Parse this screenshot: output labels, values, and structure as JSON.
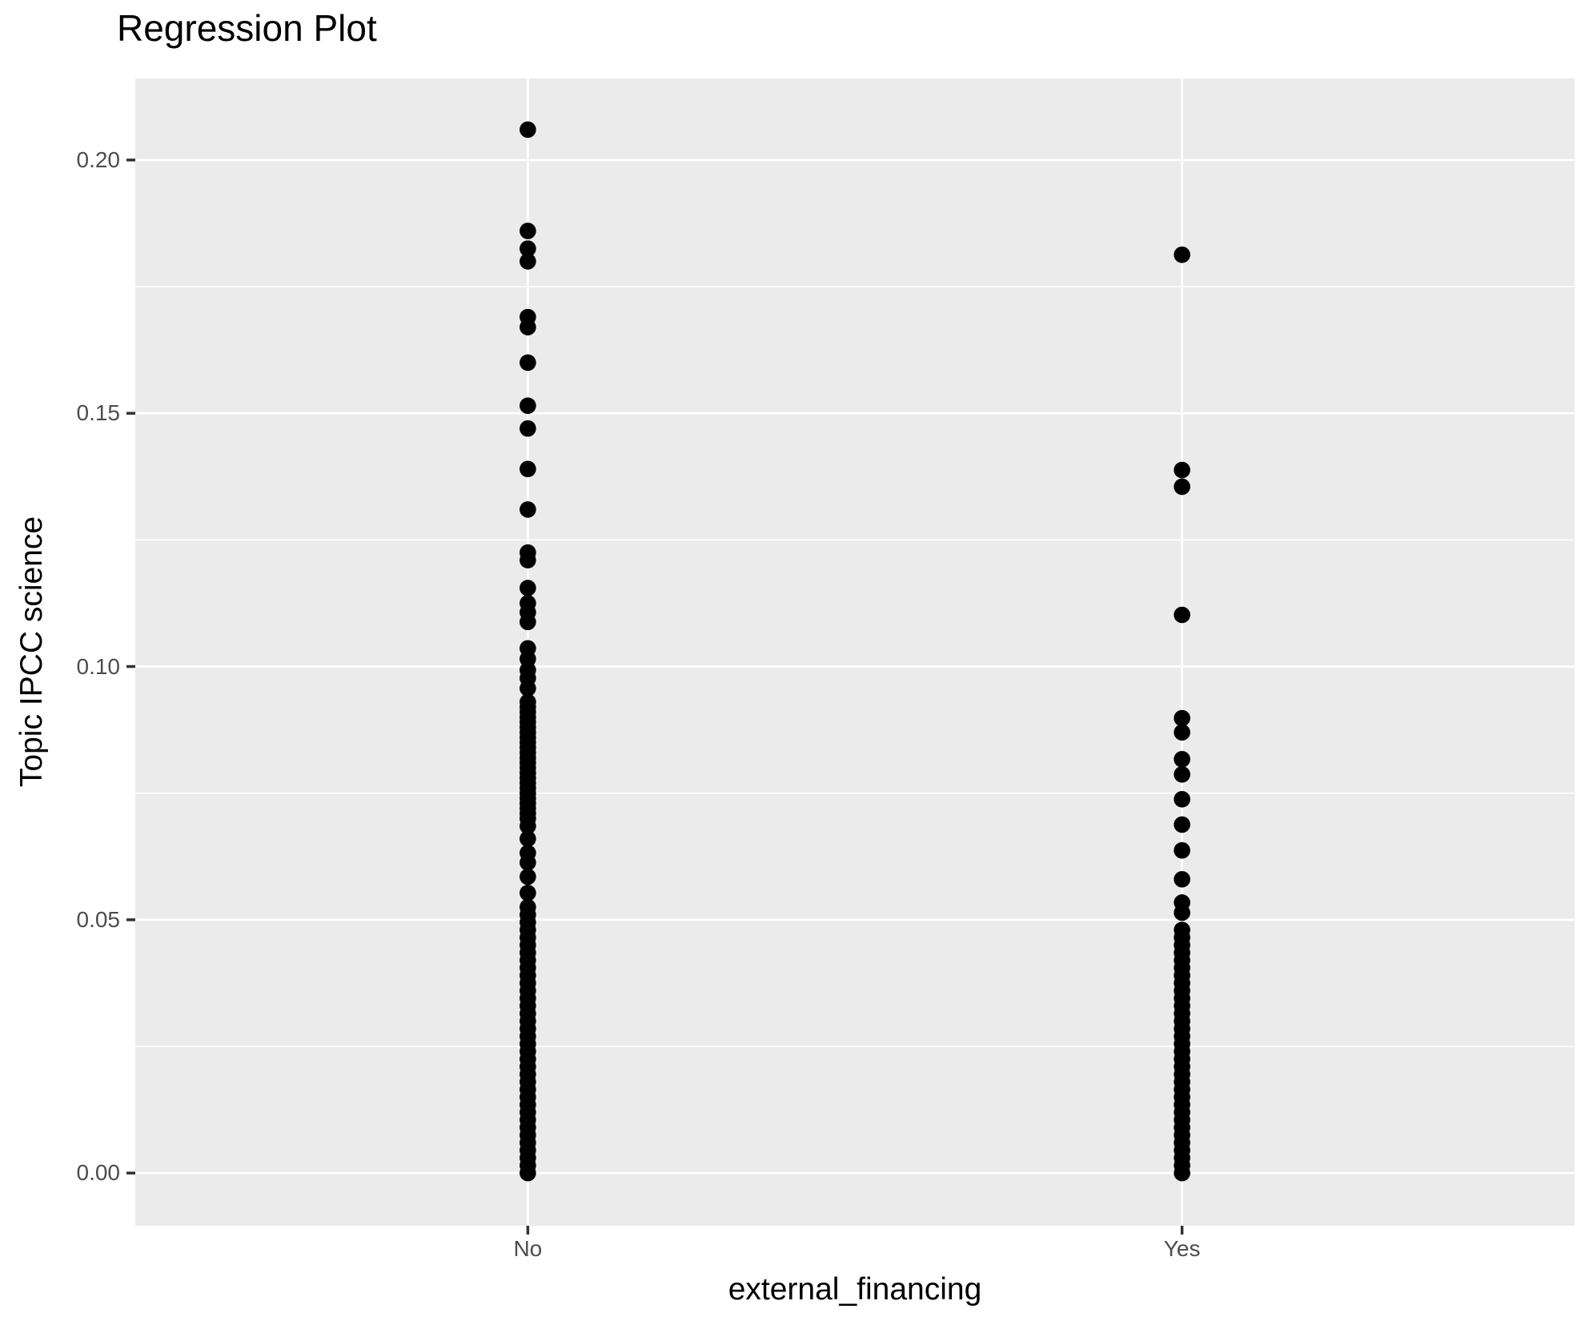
{
  "title": "Regression Plot",
  "axes": {
    "x": {
      "label": "external_financing",
      "categories": [
        "No",
        "Yes"
      ]
    },
    "y": {
      "label": "Topic IPCC science",
      "tick_labels": [
        "0.00",
        "0.05",
        "0.10",
        "0.15",
        "0.20"
      ],
      "tick_values": [
        0,
        0.05,
        0.1,
        0.15,
        0.2
      ],
      "minor_tick_values": [
        0.025,
        0.075,
        0.125,
        0.175
      ]
    }
  },
  "colors": {
    "panel_background": "#EBEBEB",
    "gridline": "#FFFFFF",
    "axis_text": "#4D4D4D",
    "tick_mark": "#333333",
    "point": "#000000",
    "title_text": "#000000"
  },
  "chart_data": {
    "type": "scatter",
    "title": "Regression Plot",
    "xlabel": "external_financing",
    "ylabel": "Topic IPCC science",
    "categories": [
      "No",
      "Yes"
    ],
    "ylim": [
      -0.0104,
      0.2161
    ],
    "yticks": [
      0,
      0.05,
      0.1,
      0.15,
      0.2
    ],
    "grid": "on",
    "legend": "none",
    "series": [
      {
        "name": "No",
        "values": [
          0.206,
          0.186,
          0.1825,
          0.18,
          0.169,
          0.167,
          0.16,
          0.1515,
          0.147,
          0.139,
          0.131,
          0.1225,
          0.121,
          0.1155,
          0.1125,
          0.1107,
          0.1088,
          0.1036,
          0.1015,
          0.0993,
          0.0977,
          0.0957,
          0.093,
          0.092,
          0.091,
          0.09,
          0.089,
          0.088,
          0.087,
          0.086,
          0.085,
          0.084,
          0.083,
          0.082,
          0.081,
          0.08,
          0.079,
          0.078,
          0.077,
          0.076,
          0.075,
          0.074,
          0.073,
          0.072,
          0.071,
          0.07,
          0.0685,
          0.066,
          0.0632,
          0.0613,
          0.0585,
          0.0553,
          0.0525,
          0.051,
          0.0495,
          0.048,
          0.0465,
          0.045,
          0.0435,
          0.042,
          0.0405,
          0.039,
          0.0375,
          0.036,
          0.0345,
          0.033,
          0.0315,
          0.03,
          0.0285,
          0.027,
          0.0255,
          0.024,
          0.0225,
          0.021,
          0.0195,
          0.018,
          0.0165,
          0.015,
          0.0135,
          0.012,
          0.0105,
          0.009,
          0.0075,
          0.006,
          0.0045,
          0.003,
          0.0015,
          0.0
        ]
      },
      {
        "name": "Yes",
        "values": [
          0.1813,
          0.1388,
          0.1355,
          0.1102,
          0.0898,
          0.087,
          0.0817,
          0.0787,
          0.0738,
          0.0688,
          0.0637,
          0.058,
          0.0534,
          0.0514,
          0.048,
          0.0465,
          0.045,
          0.0435,
          0.042,
          0.0405,
          0.039,
          0.0375,
          0.036,
          0.0345,
          0.033,
          0.0315,
          0.03,
          0.0285,
          0.027,
          0.0255,
          0.024,
          0.0225,
          0.021,
          0.0195,
          0.018,
          0.0165,
          0.015,
          0.0135,
          0.012,
          0.0105,
          0.009,
          0.0075,
          0.006,
          0.0045,
          0.003,
          0.0015,
          0.0
        ]
      }
    ]
  }
}
